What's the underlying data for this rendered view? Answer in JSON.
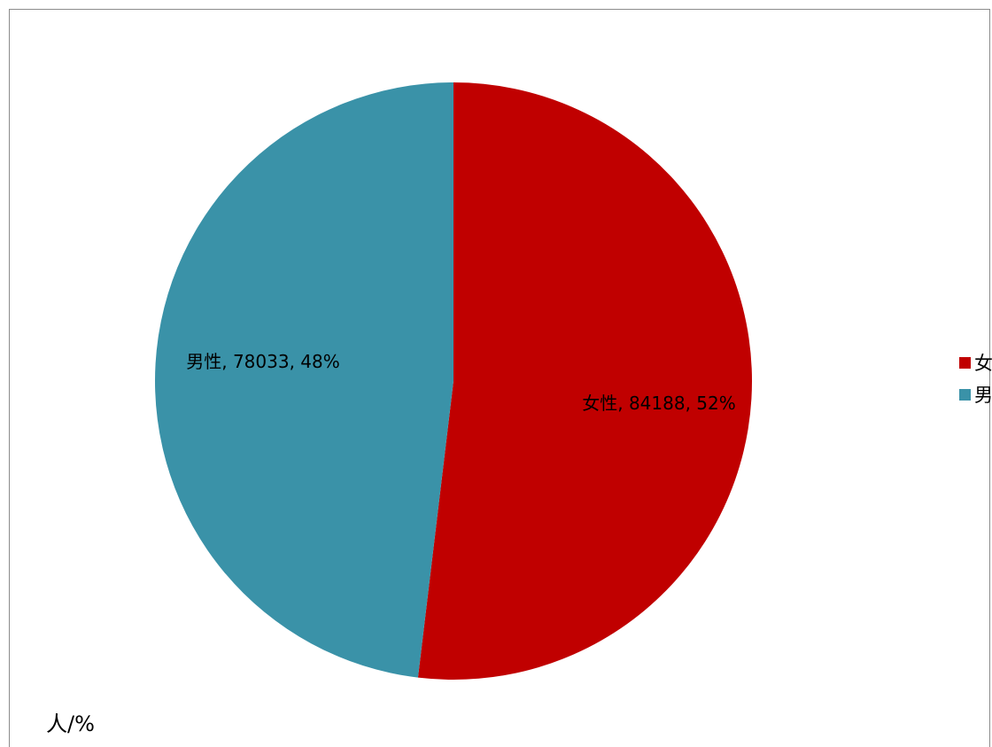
{
  "chart_data": {
    "type": "pie",
    "categories": [
      "女性",
      "男性"
    ],
    "values": [
      84188,
      78033
    ],
    "percents": [
      "52%",
      "48%"
    ],
    "data_labels": [
      "女性, 84188, 52%",
      "男性, 78033, 48%"
    ],
    "colors": [
      "#C00000",
      "#3A92A8"
    ],
    "start_angle_deg": 0,
    "direction": "clockwise",
    "legend_position": "right",
    "unit_label": "人/%"
  }
}
